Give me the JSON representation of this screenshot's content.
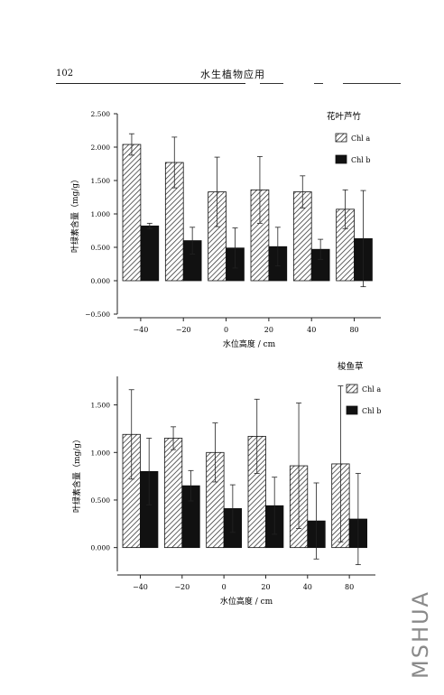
{
  "page": {
    "number": "102",
    "running_title": "水生植物应用",
    "watermark": "MSHUA"
  },
  "chart_data": [
    {
      "type": "bar",
      "title": "花叶芦竹",
      "xlabel": "水位高度 / cm",
      "ylabel": "叶绿素含量（mg/g）",
      "categories": [
        "−40",
        "−20",
        "0",
        "20",
        "40",
        "80"
      ],
      "ylim": [
        -0.5,
        2.5
      ],
      "yticks": [
        "2.500",
        "2.000",
        "1.500",
        "1.000",
        "0.500",
        "0.000",
        "−0.500"
      ],
      "ytick_values": [
        2.5,
        2.0,
        1.5,
        1.0,
        0.5,
        0.0,
        -0.5
      ],
      "legend_position": "top-right",
      "series": [
        {
          "name": "Chl a",
          "pattern": "hatch",
          "values": [
            2.04,
            1.77,
            1.33,
            1.36,
            1.33,
            1.07
          ],
          "errors": [
            0.16,
            0.38,
            0.52,
            0.5,
            0.24,
            0.29
          ]
        },
        {
          "name": "Chl b",
          "pattern": "solid",
          "values": [
            0.82,
            0.6,
            0.49,
            0.51,
            0.47,
            0.63
          ],
          "errors": [
            0.04,
            0.2,
            0.3,
            0.29,
            0.15,
            0.72
          ]
        }
      ]
    },
    {
      "type": "bar",
      "title": "梭鱼草",
      "xlabel": "水位高度 / cm",
      "ylabel": "叶绿素含量（mg/g）",
      "categories": [
        "−40",
        "−20",
        "0",
        "20",
        "40",
        "80"
      ],
      "ylim": [
        -0.25,
        1.8
      ],
      "yticks": [
        "1.500",
        "1.000",
        "0.500",
        "0.000"
      ],
      "ytick_values": [
        1.5,
        1.0,
        0.5,
        0.0
      ],
      "legend_position": "top-right",
      "series": [
        {
          "name": "Chl a",
          "pattern": "hatch",
          "values": [
            1.19,
            1.15,
            1.0,
            1.17,
            0.86,
            0.88
          ],
          "errors": [
            0.47,
            0.12,
            0.31,
            0.39,
            0.66,
            0.82
          ]
        },
        {
          "name": "Chl b",
          "pattern": "solid",
          "values": [
            0.8,
            0.65,
            0.41,
            0.44,
            0.28,
            0.3
          ],
          "errors": [
            0.35,
            0.16,
            0.25,
            0.3,
            0.4,
            0.48
          ]
        }
      ]
    }
  ]
}
